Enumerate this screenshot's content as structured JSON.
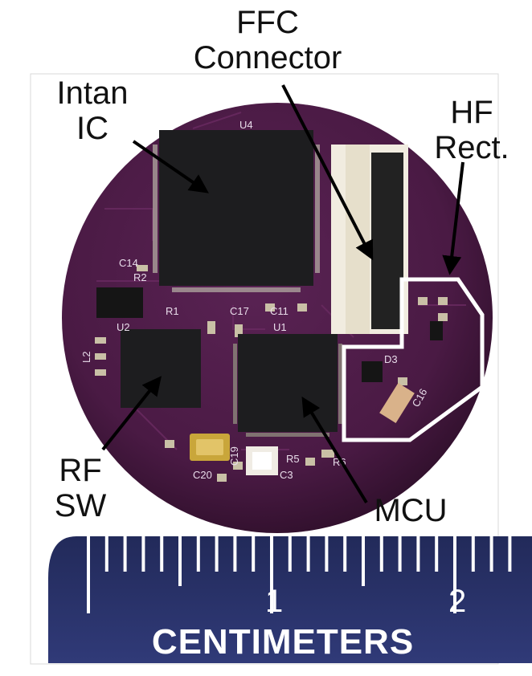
{
  "labels": {
    "ffc": [
      "FFC",
      "Connector"
    ],
    "intan": [
      "Intan",
      "IC"
    ],
    "hf": [
      "HF",
      "Rect."
    ],
    "rf": [
      "RF",
      "SW"
    ],
    "mcu": "MCU"
  },
  "ruler": {
    "unit_label": "CENTIMETERS",
    "numbers": [
      "1",
      "2"
    ]
  },
  "pcb_silkscreen": [
    "U4",
    "U1",
    "U2",
    "C14",
    "R2",
    "C17",
    "C11",
    "R1",
    "C16",
    "R5",
    "C3",
    "C20",
    "R6",
    "D3",
    "L2",
    "C19"
  ],
  "colors": {
    "pcb": "#4a1a44",
    "pcb_dark": "#2a0d26",
    "chip": "#1d1d1f",
    "connector": "#f1ece0",
    "ruler": "#28306a",
    "highlight": "#ffffff"
  }
}
